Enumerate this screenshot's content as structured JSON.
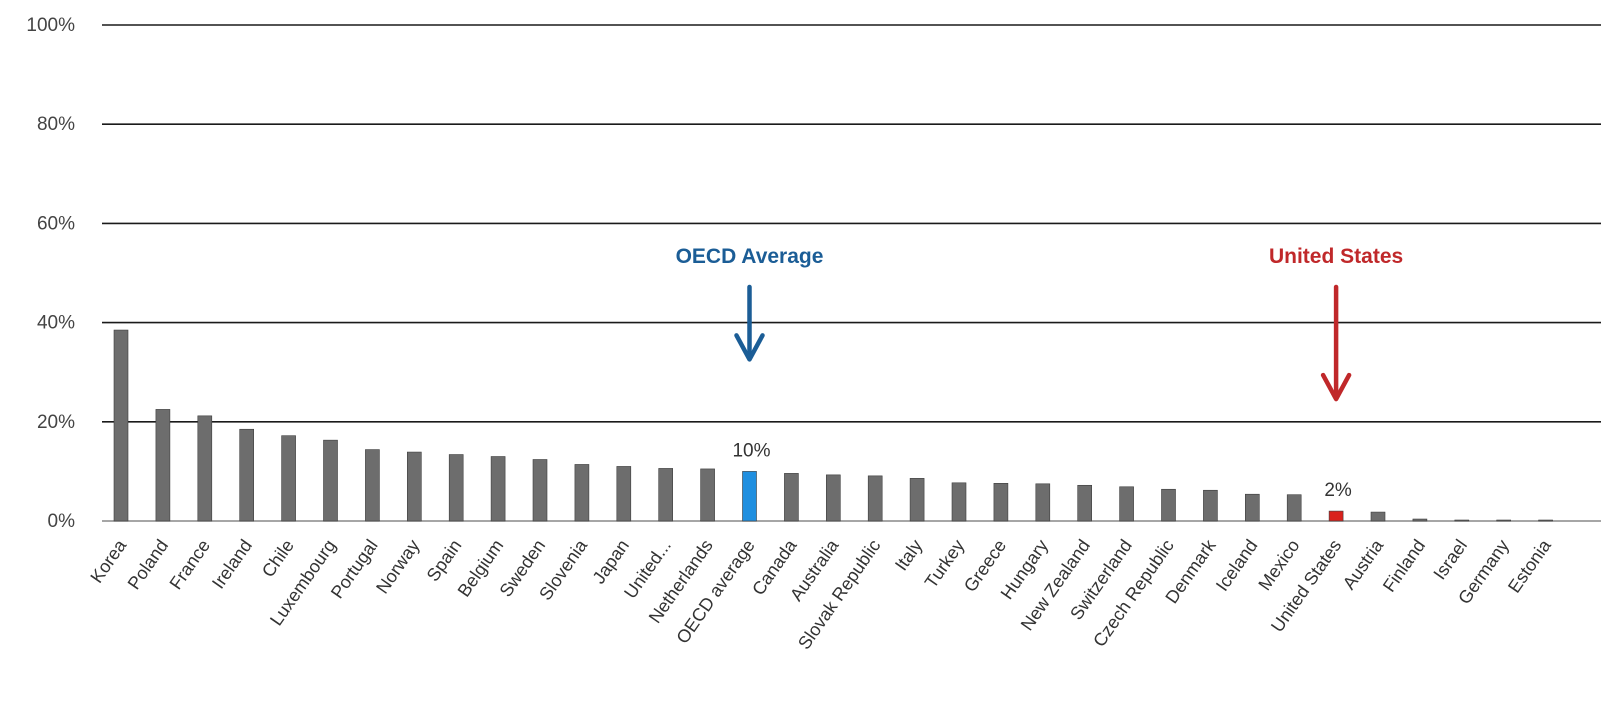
{
  "chart_data": {
    "type": "bar",
    "title": "",
    "xlabel": "",
    "ylabel": "",
    "ylim": [
      0,
      100
    ],
    "yticks": [
      "0%",
      "20%",
      "40%",
      "60%",
      "80%",
      "100%"
    ],
    "grid": true,
    "categories": [
      "Korea",
      "Poland",
      "France",
      "Ireland",
      "Chile",
      "Luxembourg",
      "Portugal",
      "Norway",
      "Spain",
      "Belgium",
      "Sweden",
      "Slovenia",
      "Japan",
      "United...",
      "Netherlands",
      "OECD average",
      "Canada",
      "Australia",
      "Slovak Republic",
      "Italy",
      "Turkey",
      "Greece",
      "Hungary",
      "New Zealand",
      "Switzerland",
      "Czech Republic",
      "Denmark",
      "Iceland",
      "Mexico",
      "United States",
      "Austria",
      "Finland",
      "Israel",
      "Germany",
      "Estonia"
    ],
    "values": [
      38.5,
      22.5,
      21.2,
      18.5,
      17.2,
      16.3,
      14.4,
      13.9,
      13.4,
      13.0,
      12.4,
      11.4,
      11.0,
      10.6,
      10.5,
      10.0,
      9.6,
      9.3,
      9.1,
      8.6,
      7.7,
      7.6,
      7.5,
      7.2,
      6.9,
      6.4,
      6.2,
      5.4,
      5.3,
      2.0,
      1.8,
      0.4,
      0.2,
      0.2,
      0.2
    ],
    "colors": {
      "default_bar": "#6d6d6d",
      "highlight": {
        "OECD average": "#1f8fe0",
        "United States": "#d9221c"
      },
      "gridline": "#1a1a1a",
      "axis": "#888888"
    },
    "data_labels": [
      {
        "category": "OECD average",
        "text": "10%"
      },
      {
        "category": "United States",
        "text": "2%"
      }
    ],
    "annotations": [
      {
        "text": "OECD Average",
        "target": "OECD average",
        "color": "#1b5d96"
      },
      {
        "text": "United States",
        "target": "United States",
        "color": "#c0282a"
      }
    ]
  }
}
